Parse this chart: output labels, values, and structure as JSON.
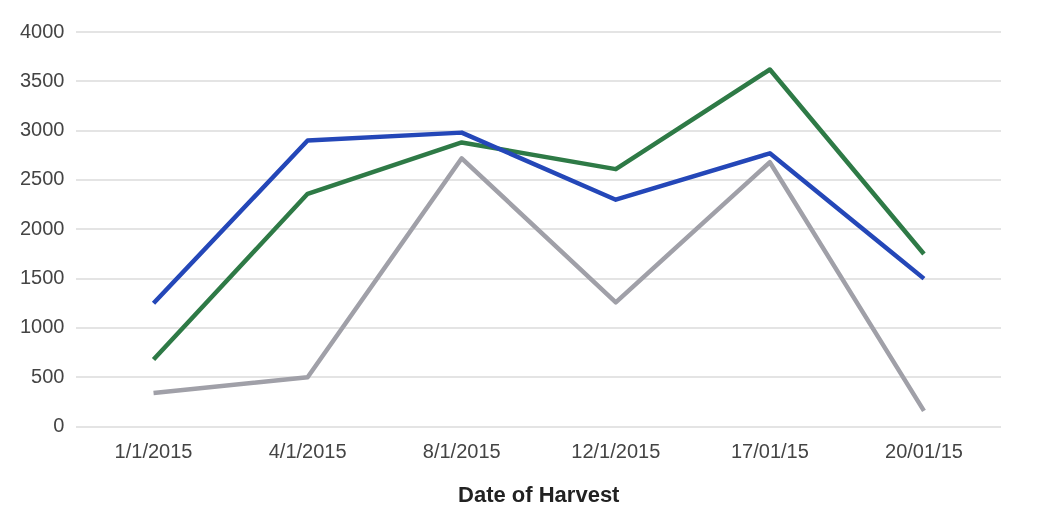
{
  "chart_data": {
    "type": "line",
    "xlabel": "Date of Harvest",
    "categories": [
      "1/1/2015",
      "4/1/2015",
      "8/1/2015",
      "12/1/2015",
      "17/01/15",
      "20/01/15"
    ],
    "series": [
      {
        "color": "#2447b8",
        "values": [
          1250,
          2900,
          2980,
          2300,
          2770,
          1500
        ]
      },
      {
        "color": "#2e7a46",
        "values": [
          680,
          2360,
          2880,
          2610,
          3620,
          1750
        ]
      },
      {
        "color": "#a0a0a8",
        "values": [
          340,
          500,
          2720,
          1260,
          2680,
          160
        ]
      }
    ],
    "ylim": [
      0,
      4000
    ],
    "yticks": [
      0,
      500,
      1000,
      1500,
      2000,
      2500,
      3000,
      3500,
      4000
    ],
    "grid": "y",
    "legend": false,
    "marker": "none",
    "line_style": "solid"
  }
}
